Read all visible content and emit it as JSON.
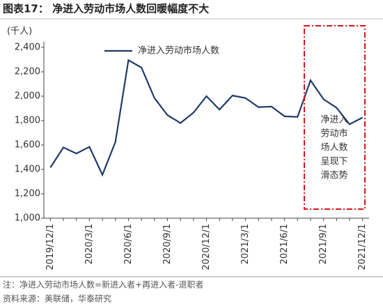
{
  "chart_data": {
    "type": "line",
    "title": "图表17：  净进入劳动市场人数回暖幅度不大",
    "y_unit": "(千人)",
    "categories": [
      "2019/12/1",
      null,
      null,
      "2020/3/1",
      null,
      null,
      "2020/6/1",
      null,
      null,
      "2020/9/1",
      null,
      null,
      "2020/12/1",
      null,
      null,
      "2021/3/1",
      null,
      null,
      "2021/6/1",
      null,
      null,
      "2021/9/1",
      null,
      null,
      "2021/12/1"
    ],
    "series": [
      {
        "name": "净进入劳动市场人数",
        "color": "#1f3a68",
        "values": [
          1415,
          1580,
          1530,
          1585,
          1355,
          1625,
          2295,
          2235,
          1985,
          1845,
          1780,
          1865,
          2000,
          1890,
          2005,
          1985,
          1910,
          1915,
          1835,
          1830,
          2130,
          1975,
          1905,
          1770,
          1825
        ]
      }
    ],
    "ylim": [
      1000,
      2400
    ],
    "yticks": [
      {
        "value": 1000,
        "label": "1,000"
      },
      {
        "value": 1200,
        "label": "1,200"
      },
      {
        "value": 1400,
        "label": "1,400"
      },
      {
        "value": 1600,
        "label": "1,600"
      },
      {
        "value": 1800,
        "label": "1,800"
      },
      {
        "value": 2000,
        "label": "2,000"
      },
      {
        "value": 2200,
        "label": "2,200"
      },
      {
        "value": 2400,
        "label": "2,400"
      }
    ],
    "annotation": [
      "净进入",
      "劳动市",
      "场人数",
      "呈现下",
      "滑态势"
    ],
    "annotation_color": "#d9141c",
    "legend": "upper-left",
    "note": "注：净进入劳动市场人数=新进入者+再进入者-退职者",
    "source": "资料来源：美联储，华泰研究"
  }
}
